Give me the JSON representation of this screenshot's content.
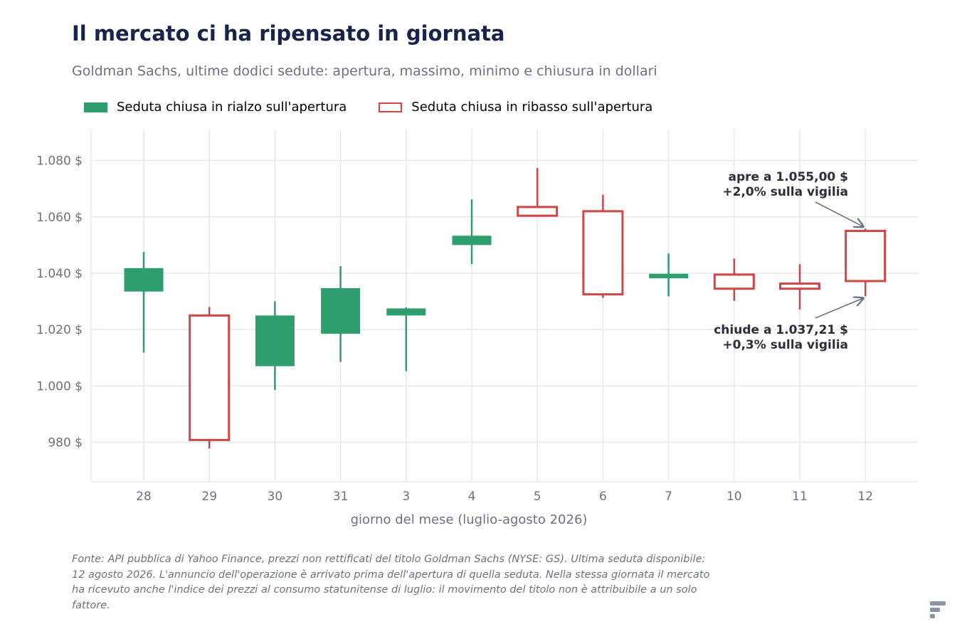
{
  "title": "Il mercato ci ha ripensato in giornata",
  "subtitle": "Goldman Sachs, ultime dodici sedute: apertura, massimo, minimo e chiusura in dollari",
  "legend": {
    "up_label": "Seduta chiusa in rialzo sull'apertura",
    "down_label": "Seduta chiusa in ribasso sull'apertura"
  },
  "colors": {
    "up": "#2e9e6e",
    "down": "#d04545",
    "grid": "#e6e8ef",
    "axis_text": "#6b7280",
    "annotation": "#2b2f3a"
  },
  "chart_data": {
    "type": "candlestick",
    "xlabel": "giorno del mese (luglio-agosto 2026)",
    "ylabel": "",
    "ylim": [
      966,
      1091
    ],
    "yticks": [
      980,
      1000,
      1020,
      1040,
      1060,
      1080
    ],
    "ytick_labels": [
      "980 $",
      "1.000 $",
      "1.020 $",
      "1.040 $",
      "1.060 $",
      "1.080 $"
    ],
    "grid": true,
    "legend_position": "top-left",
    "categories": [
      "28",
      "29",
      "30",
      "31",
      "3",
      "4",
      "5",
      "6",
      "7",
      "10",
      "11",
      "12"
    ],
    "open": [
      1033.5,
      1025.0,
      1007.0,
      1018.5,
      1025.0,
      1050.0,
      1063.5,
      1062.0,
      1038.2,
      1039.5,
      1036.3,
      1055.0
    ],
    "high": [
      1047.5,
      1028.0,
      1030.0,
      1042.5,
      1027.9,
      1066.2,
      1077.3,
      1067.8,
      1047.0,
      1045.2,
      1043.2,
      1055.8
    ],
    "low": [
      1011.8,
      977.8,
      998.5,
      1008.5,
      1005.2,
      1043.2,
      1060.4,
      1031.2,
      1031.8,
      1030.2,
      1027.1,
      1031.8
    ],
    "close": [
      1041.8,
      980.8,
      1025.0,
      1034.7,
      1027.5,
      1053.3,
      1060.4,
      1032.5,
      1039.8,
      1034.5,
      1034.5,
      1037.21
    ],
    "annotations": [
      {
        "line1": "apre a 1.055,00 $",
        "line2": "+2,0% sulla vigilia",
        "target_index": 11,
        "target_value": 1055.0
      },
      {
        "line1": "chiude a 1.037,21 $",
        "line2": "+0,3% sulla vigilia",
        "target_index": 11,
        "target_value": 1037.21
      }
    ]
  },
  "footnote": "Fonte: API pubblica di Yahoo Finance, prezzi non rettificati del titolo Goldman Sachs (NYSE: GS). Ultima seduta disponibile: 12 agosto 2026. L'annuncio dell'operazione è arrivato prima dell'apertura di quella seduta. Nella stessa giornata il mercato ha ricevuto anche l'indice dei prezzi al consumo statunitense di luglio: il movimento del titolo non è attribuibile a un solo fattore.",
  "brand_icon": "publisher-logo-icon"
}
